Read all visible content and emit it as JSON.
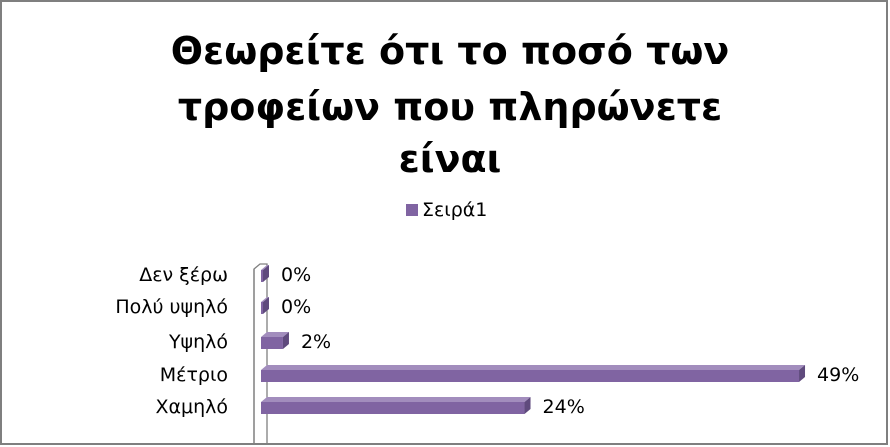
{
  "chart_data": {
    "type": "bar",
    "orientation": "horizontal",
    "title_lines": [
      "Θεωρείτε ότι το ποσό των",
      "τροφείων που πληρώνετε",
      "είναι"
    ],
    "title": "Θεωρείτε ότι το ποσό των τροφείων που πληρώνετε είναι",
    "legend": {
      "position": "top",
      "entries": [
        "Σειρά1"
      ]
    },
    "categories": [
      "Δεν ξέρω",
      "Πολύ υψηλό",
      "Υψηλό",
      "Μέτριο",
      "Χαμηλό"
    ],
    "series": [
      {
        "name": "Σειρά1",
        "values": [
          0,
          0,
          0.02,
          0.49,
          0.24
        ],
        "labels": [
          "0%",
          "0%",
          "2%",
          "49%",
          "24%"
        ]
      }
    ],
    "xlim": [
      0,
      0.5
    ],
    "grid": false,
    "colors": {
      "bar_front": "#8064a2",
      "bar_top": "#a28dbd",
      "bar_side": "#5f4a7d",
      "axis_wall": "#808080"
    }
  }
}
